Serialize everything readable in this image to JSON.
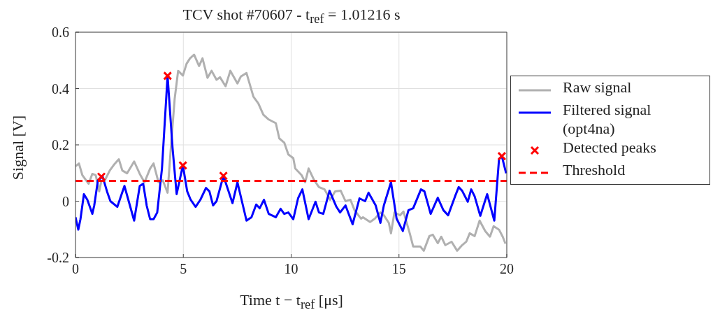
{
  "chart_data": {
    "type": "line",
    "title": "TCV shot #70607 - t$_{ref}$ = 1.01216 s",
    "xlabel": "Time t − t$_{ref}$ [μs]",
    "ylabel": "Signal [V]",
    "xlim": [
      0,
      20
    ],
    "xticks": [
      0,
      5,
      10,
      15,
      20
    ],
    "ylim": [
      -0.2,
      0.6
    ],
    "yticks": [
      -0.2,
      0,
      0.2,
      0.4,
      0.6
    ],
    "grid": true,
    "legend": "right",
    "line_style": "solid",
    "series": [
      {
        "name": "Raw signal",
        "color": "#b0b0b0",
        "x": [
          0,
          0.16,
          0.32,
          0.61,
          0.78,
          0.94,
          1.1,
          1.2,
          1.36,
          1.59,
          1.78,
          2.01,
          2.17,
          2.39,
          2.72,
          2.98,
          3.2,
          3.46,
          3.62,
          3.85,
          4.05,
          4.27,
          4.43,
          4.6,
          4.76,
          4.98,
          5.15,
          5.31,
          5.5,
          5.73,
          5.89,
          6.12,
          6.31,
          6.54,
          6.7,
          6.96,
          7.18,
          7.51,
          7.67,
          7.93,
          8.25,
          8.48,
          8.71,
          8.96,
          9.29,
          9.45,
          9.68,
          9.87,
          10.1,
          10.19,
          10.49,
          10.65,
          10.81,
          11.07,
          11.29,
          11.55,
          11.81,
          12.04,
          12.3,
          12.52,
          12.75,
          12.94,
          13.24,
          13.33,
          13.66,
          13.88,
          14.14,
          14.3,
          14.53,
          14.63,
          14.79,
          15.05,
          15.21,
          15.5,
          15.66,
          15.99,
          16.15,
          16.41,
          16.57,
          16.8,
          16.96,
          17.15,
          17.44,
          17.7,
          17.93,
          18.12,
          18.28,
          18.51,
          18.74,
          19.0,
          19.22,
          19.39,
          19.64,
          19.81,
          19.94
        ],
        "values": [
          0.124,
          0.134,
          0.092,
          0.062,
          0.097,
          0.092,
          0.035,
          0.072,
          0.074,
          0.109,
          0.129,
          0.149,
          0.109,
          0.099,
          0.141,
          0.097,
          0.067,
          0.116,
          0.134,
          0.067,
          0.074,
          0.03,
          0.198,
          0.364,
          0.463,
          0.446,
          0.488,
          0.507,
          0.52,
          0.48,
          0.507,
          0.438,
          0.463,
          0.431,
          0.44,
          0.408,
          0.463,
          0.418,
          0.443,
          0.455,
          0.371,
          0.347,
          0.307,
          0.29,
          0.277,
          0.223,
          0.208,
          0.166,
          0.153,
          0.116,
          0.092,
          0.067,
          0.116,
          0.074,
          0.05,
          0.042,
          0.005,
          0.035,
          0.037,
          0,
          0.005,
          -0.032,
          -0.062,
          -0.057,
          -0.074,
          -0.062,
          -0.04,
          -0.05,
          -0.077,
          -0.114,
          -0.04,
          -0.05,
          -0.037,
          -0.114,
          -0.161,
          -0.161,
          -0.176,
          -0.124,
          -0.119,
          -0.149,
          -0.126,
          -0.156,
          -0.144,
          -0.176,
          -0.156,
          -0.144,
          -0.114,
          -0.124,
          -0.069,
          -0.106,
          -0.126,
          -0.089,
          -0.101,
          -0.126,
          -0.151
        ]
      },
      {
        "name": "Filtered signal (opt4na)",
        "color": "#0000ff",
        "x": [
          0,
          0.13,
          0.23,
          0.39,
          0.55,
          0.78,
          0.87,
          1.04,
          1.26,
          1.46,
          1.62,
          1.94,
          2.27,
          2.72,
          2.98,
          3.14,
          3.3,
          3.46,
          3.62,
          3.79,
          4.01,
          4.27,
          4.5,
          4.69,
          4.98,
          5.18,
          5.34,
          5.57,
          5.79,
          6.05,
          6.21,
          6.38,
          6.54,
          6.86,
          7.28,
          7.51,
          7.93,
          8.16,
          8.38,
          8.54,
          8.74,
          8.96,
          9.29,
          9.51,
          9.68,
          9.87,
          10.1,
          10.32,
          10.52,
          10.81,
          11.13,
          11.29,
          11.49,
          11.78,
          12.1,
          12.27,
          12.52,
          12.85,
          13.17,
          13.43,
          13.59,
          13.92,
          14.14,
          14.3,
          14.63,
          14.89,
          15.18,
          15.44,
          15.66,
          16.02,
          16.18,
          16.47,
          16.8,
          17.06,
          17.28,
          17.6,
          17.77,
          17.93,
          18.19,
          18.35,
          18.51,
          18.77,
          19.09,
          19.42,
          19.64,
          19.77,
          19.97
        ],
        "values": [
          -0.057,
          -0.101,
          -0.064,
          0.025,
          0.005,
          -0.045,
          -0.015,
          0.074,
          0.087,
          0.035,
          0,
          -0.02,
          0.054,
          -0.069,
          0.054,
          0.062,
          -0.015,
          -0.064,
          -0.064,
          -0.04,
          0.116,
          0.445,
          0.19,
          0.025,
          0.127,
          0.035,
          0.005,
          -0.02,
          0.005,
          0.047,
          0.035,
          -0.015,
          0,
          0.09,
          -0.007,
          0.067,
          -0.069,
          -0.057,
          -0.012,
          -0.025,
          0.005,
          -0.045,
          -0.057,
          -0.027,
          -0.045,
          -0.04,
          -0.064,
          0.01,
          0.042,
          -0.064,
          -0.002,
          -0.04,
          -0.045,
          0.037,
          -0.02,
          -0.04,
          -0.015,
          -0.082,
          0.01,
          0,
          0.03,
          -0.015,
          -0.077,
          -0.015,
          0.067,
          -0.062,
          -0.106,
          -0.032,
          -0.025,
          0.042,
          0.035,
          -0.045,
          0.012,
          -0.032,
          -0.05,
          0.017,
          0.05,
          0.037,
          -0.002,
          0.042,
          0.017,
          -0.052,
          0.025,
          -0.069,
          0.149,
          0.16,
          0.099
        ]
      },
      {
        "name": "Detected peaks",
        "type": "scatter",
        "marker": "cross",
        "color": "#ff0000",
        "x": [
          1.2,
          4.27,
          4.98,
          6.86,
          19.77
        ],
        "values": [
          0.087,
          0.445,
          0.127,
          0.09,
          0.16
        ]
      },
      {
        "name": "Threshold",
        "type": "line",
        "line_style": "dashed",
        "color": "#ff0000",
        "x": [
          0,
          20
        ],
        "values": [
          0.072,
          0.072
        ]
      }
    ]
  }
}
